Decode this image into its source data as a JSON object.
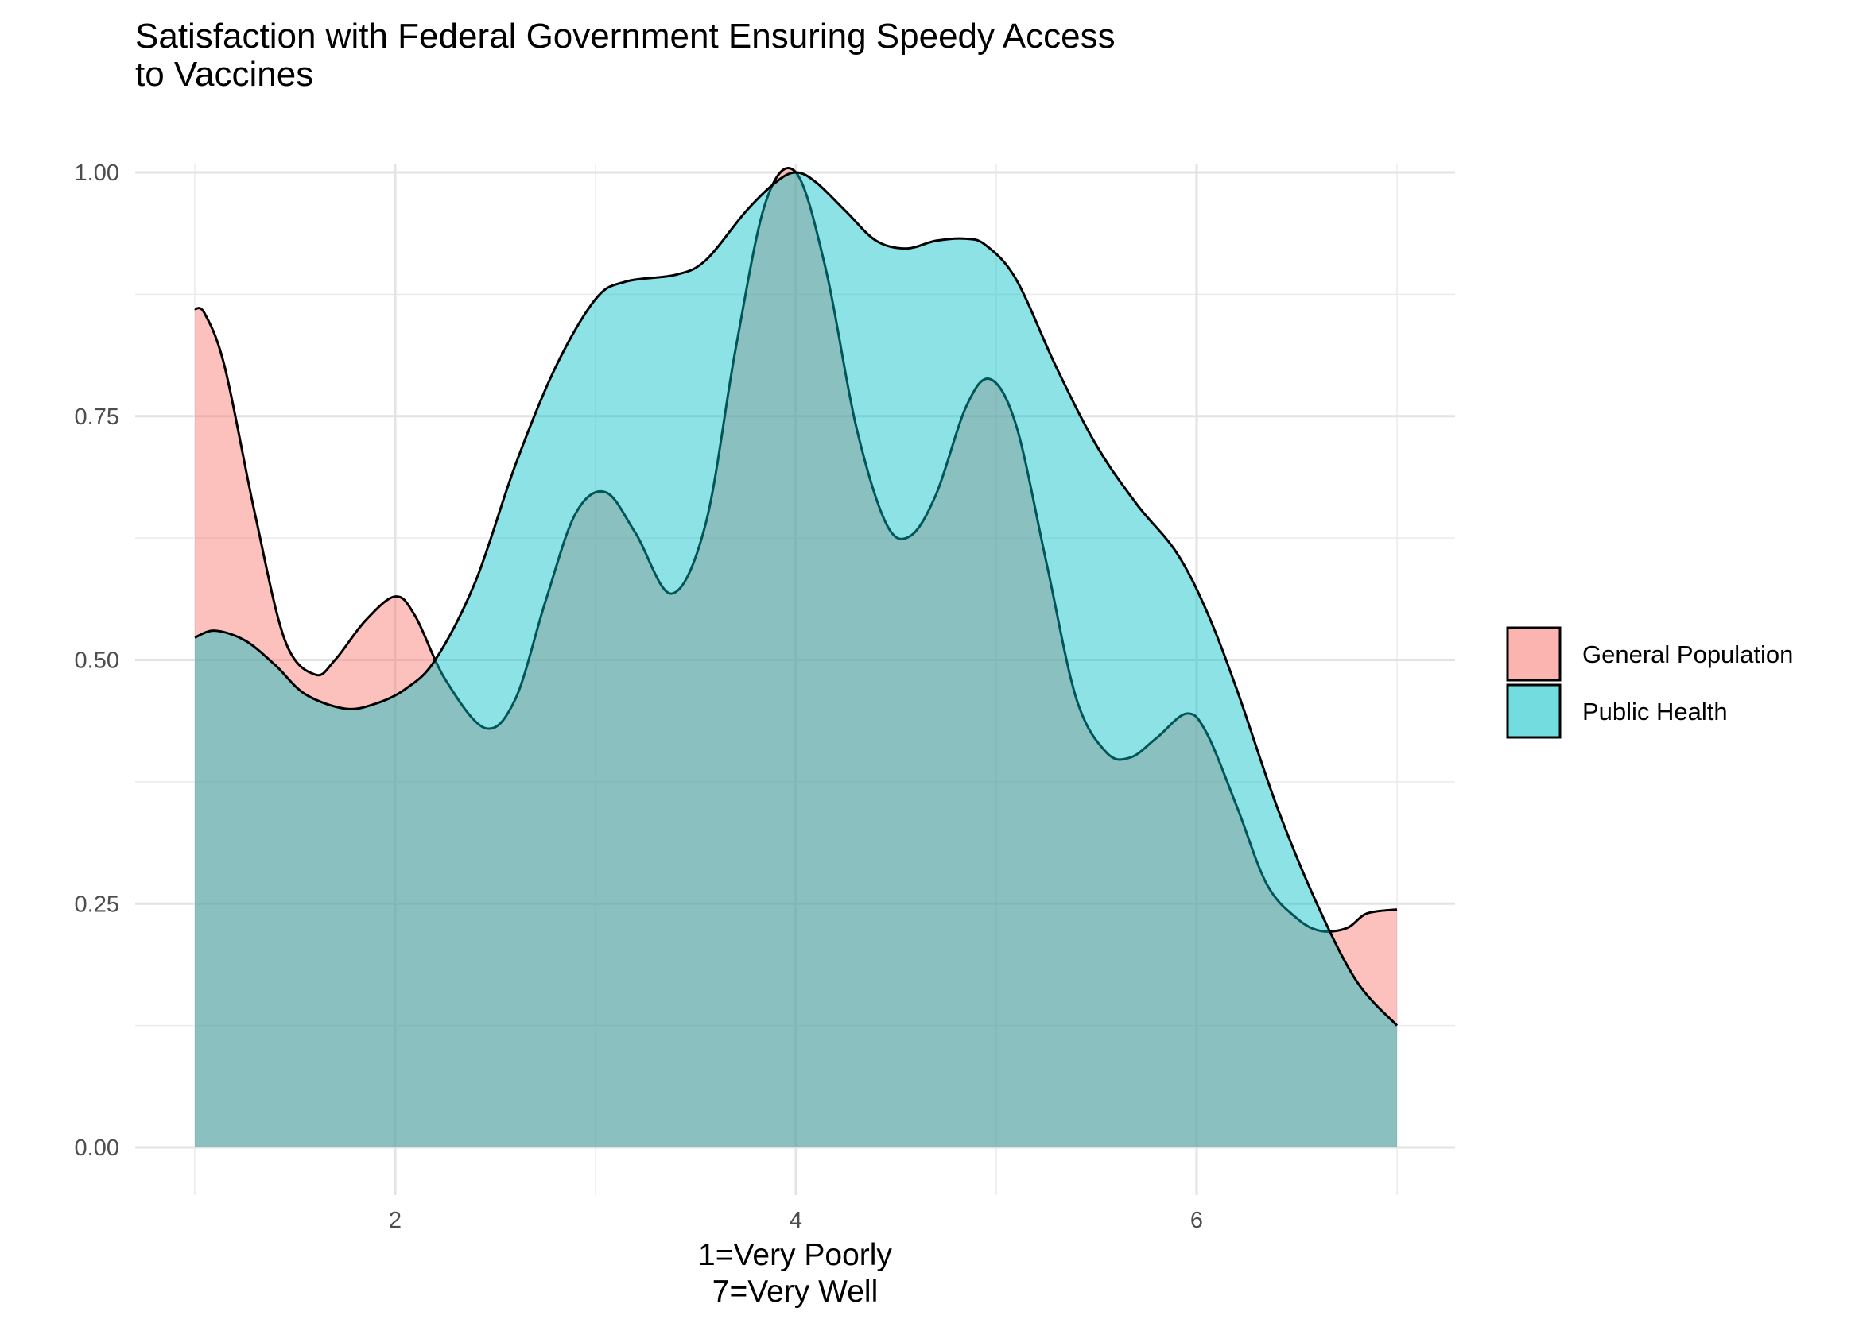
{
  "chart_data": {
    "type": "area",
    "title": [
      "Satisfaction with Federal Government Ensuring Speedy Access",
      "to Vaccines"
    ],
    "xlabel": [
      "1=Very Poorly",
      "7=Very Well"
    ],
    "ylabel": "",
    "xlim": [
      1,
      7
    ],
    "ylim": [
      0,
      1
    ],
    "x_ticks": [
      2,
      4,
      6
    ],
    "x_tick_labels": [
      "2",
      "4",
      "6"
    ],
    "y_ticks": [
      0,
      0.25,
      0.5,
      0.75,
      1
    ],
    "y_tick_labels": [
      "0.00",
      "0.25",
      "0.50",
      "0.75",
      "1.00"
    ],
    "grid": true,
    "legend_position": "right",
    "series": [
      {
        "name": "General Population",
        "color": "#F8766D",
        "x": [
          1,
          1.05,
          1.15,
          1.3,
          1.45,
          1.6,
          1.7,
          1.85,
          2.0,
          2.1,
          2.25,
          2.45,
          2.6,
          2.75,
          2.9,
          3.05,
          3.2,
          3.38,
          3.55,
          3.7,
          3.85,
          4.0,
          4.15,
          4.3,
          4.45,
          4.57,
          4.7,
          4.85,
          4.97,
          5.1,
          5.25,
          5.4,
          5.55,
          5.67,
          5.8,
          5.95,
          6.05,
          6.2,
          6.35,
          6.5,
          6.62,
          6.75,
          6.85,
          7.0
        ],
        "y": [
          0.86,
          0.855,
          0.8,
          0.65,
          0.52,
          0.485,
          0.5,
          0.54,
          0.565,
          0.545,
          0.48,
          0.43,
          0.46,
          0.56,
          0.65,
          0.672,
          0.63,
          0.568,
          0.64,
          0.82,
          0.97,
          1.0,
          0.9,
          0.74,
          0.64,
          0.627,
          0.67,
          0.76,
          0.788,
          0.74,
          0.6,
          0.46,
          0.405,
          0.4,
          0.42,
          0.445,
          0.425,
          0.35,
          0.27,
          0.235,
          0.222,
          0.225,
          0.24,
          0.244
        ]
      },
      {
        "name": "Public Health",
        "color": "#00BFC4",
        "x": [
          1,
          1.1,
          1.25,
          1.4,
          1.55,
          1.75,
          1.9,
          2.05,
          2.2,
          2.4,
          2.6,
          2.8,
          3.0,
          3.15,
          3.4,
          3.55,
          3.75,
          3.9,
          4.0,
          4.1,
          4.25,
          4.4,
          4.55,
          4.7,
          4.85,
          4.95,
          5.1,
          5.3,
          5.5,
          5.7,
          5.9,
          6.05,
          6.2,
          6.4,
          6.6,
          6.8,
          7.0
        ],
        "y": [
          0.523,
          0.53,
          0.52,
          0.495,
          0.465,
          0.45,
          0.455,
          0.47,
          0.5,
          0.58,
          0.7,
          0.8,
          0.87,
          0.888,
          0.895,
          0.91,
          0.96,
          0.99,
          1.0,
          0.99,
          0.96,
          0.93,
          0.922,
          0.93,
          0.932,
          0.925,
          0.89,
          0.8,
          0.72,
          0.66,
          0.61,
          0.55,
          0.47,
          0.35,
          0.25,
          0.17,
          0.125
        ]
      }
    ]
  }
}
